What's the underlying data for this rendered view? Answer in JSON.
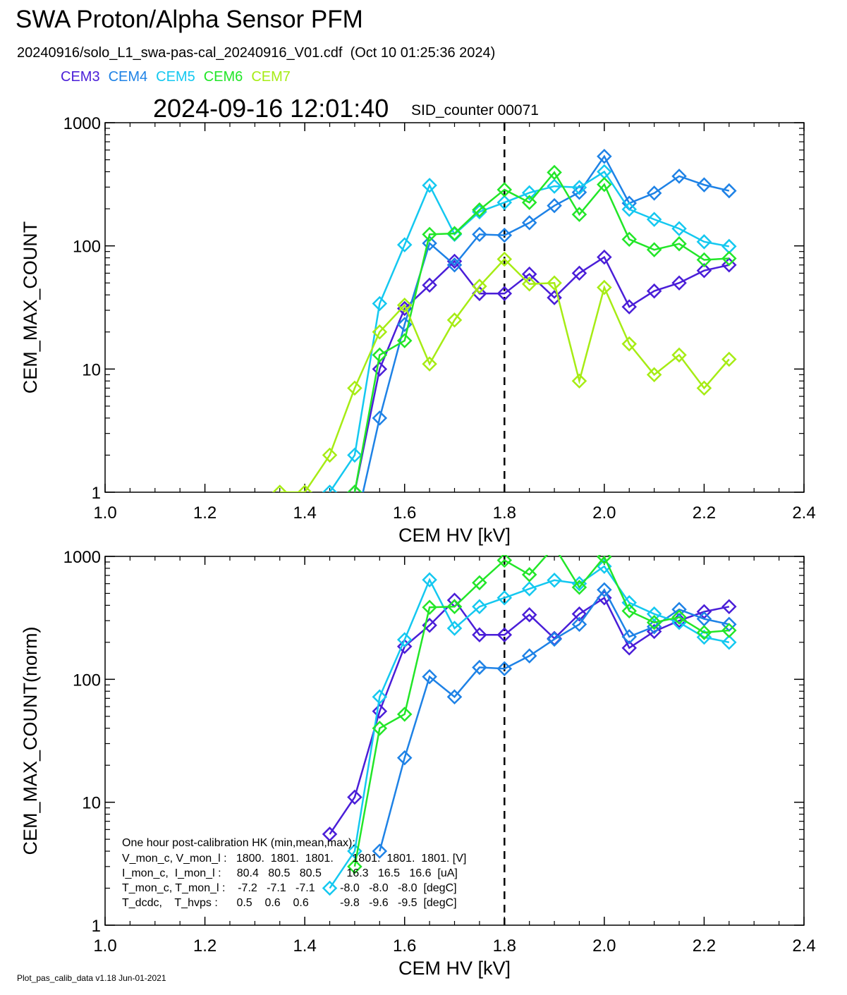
{
  "header": {
    "title": "SWA Proton/Alpha Sensor PFM",
    "subtitle": "20240916/solo_L1_swa-pas-cal_20240916_V01.cdf  (Oct 10 01:25:36 2024)",
    "timestamp": "2024-09-16 12:01:40",
    "sid": "SID_counter 00071"
  },
  "legend": [
    {
      "name": "CEM3",
      "color": "#4a1ed8"
    },
    {
      "name": "CEM4",
      "color": "#1e82e6"
    },
    {
      "name": "CEM5",
      "color": "#14c8f0"
    },
    {
      "name": "CEM6",
      "color": "#22e628"
    },
    {
      "name": "CEM7",
      "color": "#a6ec14"
    }
  ],
  "footer": "Plot_pas_calib_data v1.18 Jun-01-2021",
  "hk": {
    "heading": "One hour post-calibration HK (min,mean,max):",
    "rows": [
      "V_mon_c, V_mon_l :   1800.  1801.  1801.      1801.  1801.  1801. [V]",
      "I_mon_c,  I_mon_l :     80.4   80.5   80.5        16.3   16.5   16.6  [uA]",
      "T_mon_c, T_mon_l :    -7.2   -7.1   -7.1        -8.0   -8.0   -8.0  [degC]",
      "T_dcdc,    T_hvps :      0.5    0.6    0.6          -9.8   -9.6   -9.5  [degC]"
    ]
  },
  "chart_data": [
    {
      "type": "line",
      "xlabel": "CEM HV [kV]",
      "ylabel": "CEM_MAX_COUNT",
      "xlim": [
        1.0,
        2.4
      ],
      "ylim": [
        1,
        1000
      ],
      "yscale": "log",
      "xticks": [
        "1.0",
        "1.2",
        "1.4",
        "1.6",
        "1.8",
        "2.0",
        "2.2",
        "2.4"
      ],
      "yticks": [
        "1",
        "10",
        "100",
        "1000"
      ],
      "vline": 1.8,
      "x": [
        1.35,
        1.4,
        1.45,
        1.5,
        1.55,
        1.6,
        1.65,
        1.7,
        1.75,
        1.8,
        1.85,
        1.9,
        1.95,
        2.0,
        2.05,
        2.1,
        2.15,
        2.2,
        2.25
      ],
      "series": [
        {
          "name": "CEM3",
          "values": [
            null,
            null,
            null,
            1,
            10,
            31,
            48,
            75,
            41,
            41,
            59,
            38,
            60,
            81,
            32,
            43,
            50,
            63,
            70
          ]
        },
        {
          "name": "CEM4",
          "values": [
            null,
            null,
            null,
            0.5,
            4,
            23,
            105,
            70,
            124,
            122,
            154,
            212,
            272,
            533,
            222,
            268,
            368,
            313,
            280
          ]
        },
        {
          "name": "CEM5",
          "values": [
            null,
            null,
            1,
            2,
            34,
            102,
            310,
            124,
            189,
            225,
            270,
            305,
            298,
            400,
            198,
            164,
            138,
            108,
            99
          ]
        },
        {
          "name": "CEM6",
          "values": [
            null,
            null,
            null,
            1,
            13,
            17,
            124,
            126,
            196,
            286,
            225,
            395,
            180,
            315,
            113,
            93,
            104,
            77,
            79
          ]
        },
        {
          "name": "CEM7",
          "values": [
            1,
            1,
            2,
            7,
            20,
            33,
            11,
            25,
            47,
            78,
            49,
            50,
            8,
            46,
            16,
            9,
            13,
            7,
            12
          ]
        }
      ]
    },
    {
      "type": "line",
      "xlabel": "CEM HV [kV]",
      "ylabel": "CEM_MAX_COUNT(norm)",
      "xlim": [
        1.0,
        2.4
      ],
      "ylim": [
        1,
        1000
      ],
      "yscale": "log",
      "xticks": [
        "1.0",
        "1.2",
        "1.4",
        "1.6",
        "1.8",
        "2.0",
        "2.2",
        "2.4"
      ],
      "yticks": [
        "1",
        "10",
        "100",
        "1000"
      ],
      "vline": 1.8,
      "x": [
        1.35,
        1.4,
        1.45,
        1.5,
        1.55,
        1.6,
        1.65,
        1.7,
        1.75,
        1.8,
        1.85,
        1.9,
        1.95,
        2.0,
        2.05,
        2.1,
        2.15,
        2.2,
        2.25
      ],
      "series": [
        {
          "name": "CEM3",
          "values": [
            null,
            null,
            5.5,
            11,
            55,
            185,
            275,
            440,
            230,
            230,
            335,
            215,
            340,
            460,
            180,
            245,
            300,
            355,
            390
          ]
        },
        {
          "name": "CEM4",
          "values": [
            null,
            null,
            null,
            null,
            4,
            23,
            105,
            72,
            125,
            122,
            155,
            212,
            280,
            535,
            222,
            268,
            370,
            310,
            280
          ]
        },
        {
          "name": "CEM5",
          "values": [
            null,
            null,
            2,
            4,
            72,
            210,
            645,
            260,
            390,
            460,
            545,
            640,
            600,
            830,
            420,
            340,
            290,
            220,
            200
          ]
        },
        {
          "name": "CEM6",
          "values": [
            null,
            null,
            null,
            3,
            40,
            52,
            385,
            390,
            610,
            930,
            710,
            1200,
            560,
            990,
            360,
            290,
            320,
            240,
            250
          ]
        }
      ]
    }
  ]
}
